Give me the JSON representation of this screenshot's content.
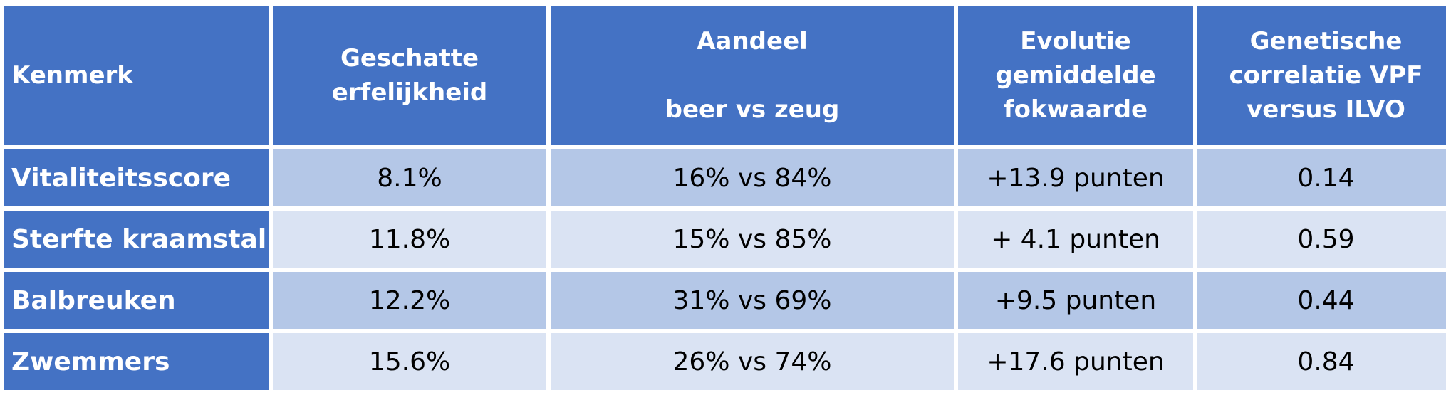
{
  "table": {
    "headers": {
      "kenmerk": "Kenmerk",
      "erfelijkheid_1": "Geschatte",
      "erfelijkheid_2": "erfelijkheid",
      "aandeel_1": "Aandeel",
      "aandeel_2": "beer vs zeug",
      "evolutie_1": "Evolutie",
      "evolutie_2": "gemiddelde",
      "evolutie_3": "fokwaarde",
      "correlatie_1": "Genetische",
      "correlatie_2": "correlatie VPF",
      "correlatie_3": "versus ILVO"
    },
    "rows": [
      {
        "kenmerk": "Vitaliteitsscore",
        "erfelijkheid": "8.1%",
        "aandeel": "16% vs 84%",
        "evolutie": "+13.9 punten",
        "correlatie": "0.14"
      },
      {
        "kenmerk": "Sterfte kraamstal",
        "erfelijkheid": "11.8%",
        "aandeel": "15% vs 85%",
        "evolutie": "+ 4.1 punten",
        "correlatie": "0.59"
      },
      {
        "kenmerk": "Balbreuken",
        "erfelijkheid": "12.2%",
        "aandeel": "31% vs 69%",
        "evolutie": "+9.5 punten",
        "correlatie": "0.44"
      },
      {
        "kenmerk": "Zwemmers",
        "erfelijkheid": "15.6%",
        "aandeel": "26% vs 74%",
        "evolutie": "+17.6 punten",
        "correlatie": "0.84"
      }
    ],
    "colors": {
      "header": "#4472c4",
      "row_dark": "#b4c7e7",
      "row_light": "#dae3f3"
    }
  }
}
